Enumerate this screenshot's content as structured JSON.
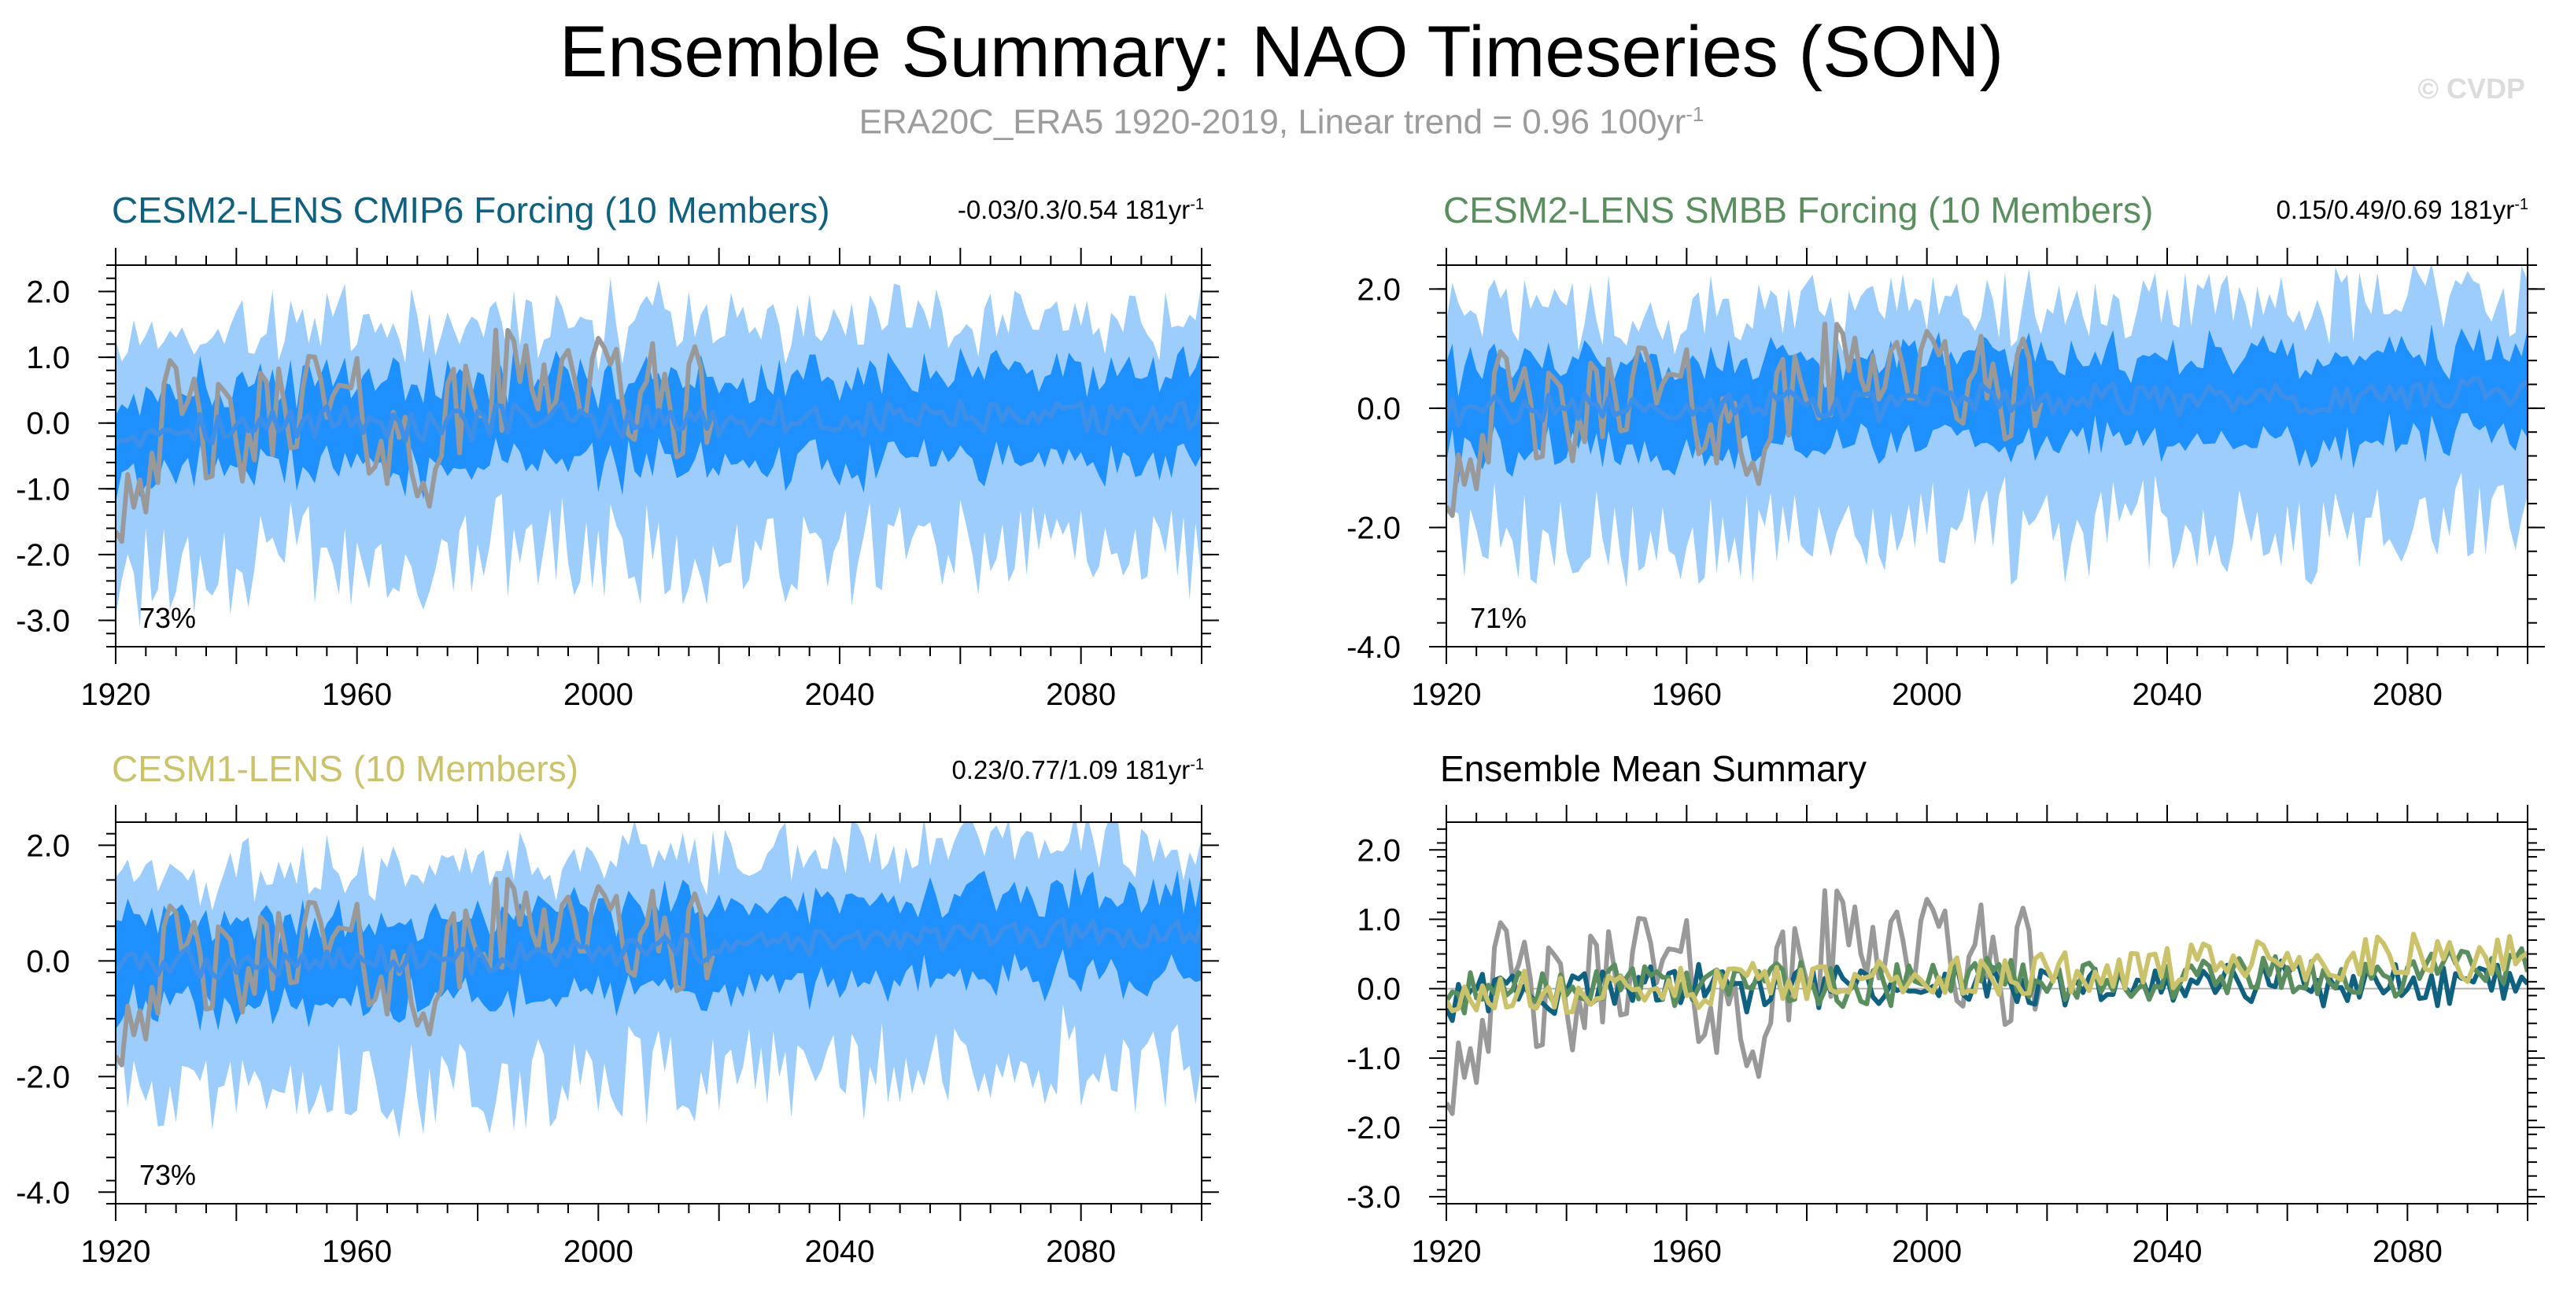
{
  "header": {
    "title": "Ensemble Summary: NAO Timeseries (SON)",
    "subtitle": "ERA20C_ERA5 1920-2019, Linear trend = 0.96 100yr",
    "subtitle_unit_exp": "-1",
    "credit": "© CVDP"
  },
  "colors": {
    "observed": "#999999",
    "ensemble_mean": "#3d8fe8",
    "inner_band": "#1e90ff",
    "outer_band": "#9dcdfc",
    "cesm2_cmip6": "#10607f",
    "cesm2_smbb": "#5b8e5f",
    "cesm1": "#cbc36b"
  },
  "panels": [
    {
      "title": "CESM2-LENS CMIP6 Forcing (10 Members)",
      "title_color": "#10607f",
      "stats": "-0.03/0.3/0.54 181yr",
      "stats_exp": "-1",
      "percent": "73%"
    },
    {
      "title": "CESM2-LENS SMBB Forcing (10 Members)",
      "title_color": "#5b8e5f",
      "stats": "0.15/0.49/0.69 181yr",
      "stats_exp": "-1",
      "percent": "71%"
    },
    {
      "title": "CESM1-LENS (10 Members)",
      "title_color": "#cbc36b",
      "stats": "0.23/0.77/1.09 181yr",
      "stats_exp": "-1",
      "percent": "73%"
    },
    {
      "title": "Ensemble Mean Summary",
      "title_color": "#000000",
      "stats": "",
      "stats_exp": "",
      "percent": ""
    }
  ],
  "chart_data": [
    {
      "type": "area",
      "title": "CESM2-LENS CMIP6 Forcing (10 Members)",
      "x_range": [
        1920,
        2100
      ],
      "xticks": [
        1920,
        1960,
        2000,
        2040,
        2080
      ],
      "ylim": [
        -3.4,
        2.4
      ],
      "yticks": [
        2.0,
        1.0,
        0.0,
        -1.0,
        -2.0,
        -3.0
      ],
      "ytick_labels": [
        "2.0",
        "1.0",
        "0.0",
        "-1.0",
        "-2.0",
        "-3.0"
      ],
      "series": [
        {
          "role": "observed",
          "x_range": [
            1920,
            2019
          ],
          "approx_values_by_decade": [
            -1.2,
            0.2,
            -0.4,
            0.5,
            0.1,
            -0.6,
            0.4,
            0.9,
            0.6,
            0.3
          ]
        },
        {
          "role": "ensemble_mean",
          "x_range": [
            1920,
            2100
          ],
          "approx_values_by_decade": [
            -0.2,
            0.0,
            -0.1,
            0.0,
            0.1,
            -0.1,
            0.0,
            0.1,
            0.0,
            0.1,
            0.0,
            0.1,
            0.0,
            0.1,
            0.1,
            0.0,
            0.1,
            0.0,
            0.2
          ]
        },
        {
          "role": "inner_band_range",
          "approx_values": [
            -0.9,
            0.9
          ]
        },
        {
          "role": "outer_band_range",
          "approx_values": [
            -2.4,
            1.8
          ]
        }
      ],
      "annotation": "73%"
    },
    {
      "type": "area",
      "title": "CESM2-LENS SMBB Forcing (10 Members)",
      "x_range": [
        1920,
        2100
      ],
      "xticks": [
        1920,
        1960,
        2000,
        2040,
        2080
      ],
      "ylim": [
        -4.0,
        2.4
      ],
      "yticks": [
        2.0,
        0.0,
        -2.0,
        -4.0
      ],
      "ytick_labels": [
        "2.0",
        "0.0",
        "-2.0",
        "-4.0"
      ],
      "series": [
        {
          "role": "observed",
          "x_range": [
            1920,
            2019
          ],
          "approx_values_by_decade": [
            -1.2,
            0.2,
            -0.4,
            0.5,
            0.1,
            -0.6,
            0.4,
            0.9,
            0.6,
            0.3
          ]
        },
        {
          "role": "ensemble_mean",
          "x_range": [
            1920,
            2100
          ],
          "approx_values_by_decade": [
            -0.1,
            0.0,
            0.0,
            0.1,
            0.0,
            0.1,
            0.1,
            0.0,
            0.1,
            0.2,
            0.1,
            0.2,
            0.1,
            0.2,
            0.2,
            0.1,
            0.2,
            0.3,
            0.3
          ]
        },
        {
          "role": "inner_band_range",
          "approx_values": [
            -1.0,
            1.0
          ]
        },
        {
          "role": "outer_band_range",
          "approx_values": [
            -2.6,
            1.9
          ]
        }
      ],
      "annotation": "71%"
    },
    {
      "type": "area",
      "title": "CESM1-LENS (10 Members)",
      "x_range": [
        1920,
        2100
      ],
      "xticks": [
        1920,
        1960,
        2000,
        2040,
        2080
      ],
      "ylim": [
        -4.2,
        2.4
      ],
      "yticks": [
        2.0,
        0.0,
        -2.0,
        -4.0
      ],
      "ytick_labels": [
        "2.0",
        "0.0",
        "-2.0",
        "-4.0"
      ],
      "series": [
        {
          "role": "observed",
          "x_range": [
            1920,
            2019
          ],
          "approx_values_by_decade": [
            -1.2,
            0.2,
            -0.4,
            0.5,
            0.1,
            -0.6,
            0.4,
            0.9,
            0.6,
            0.3
          ]
        },
        {
          "role": "ensemble_mean",
          "x_range": [
            1920,
            2100
          ],
          "approx_values_by_decade": [
            -0.1,
            0.0,
            -0.1,
            0.0,
            0.0,
            0.1,
            0.0,
            0.1,
            0.1,
            0.2,
            0.2,
            0.3,
            0.3,
            0.4,
            0.4,
            0.4,
            0.5,
            0.4,
            0.5
          ]
        },
        {
          "role": "inner_band_range",
          "approx_values": [
            -1.0,
            1.0
          ]
        },
        {
          "role": "outer_band_range",
          "approx_values": [
            -2.6,
            1.9
          ]
        }
      ],
      "annotation": "73%"
    },
    {
      "type": "line",
      "title": "Ensemble Mean Summary",
      "x_range": [
        1920,
        2100
      ],
      "xticks": [
        1920,
        1960,
        2000,
        2040,
        2080
      ],
      "ylim": [
        -3.1,
        2.4
      ],
      "yticks": [
        2.0,
        1.0,
        0.0,
        -1.0,
        -2.0,
        -3.0
      ],
      "ytick_labels": [
        "2.0",
        "1.0",
        "0.0",
        "-1.0",
        "-2.0",
        "-3.0"
      ],
      "series": [
        {
          "role": "observed",
          "x_range": [
            1920,
            2019
          ],
          "approx_values_by_decade": [
            -1.2,
            0.2,
            -0.4,
            0.5,
            0.1,
            -0.6,
            0.4,
            0.9,
            0.6,
            0.3
          ]
        },
        {
          "role": "cesm2_cmip6_mean",
          "x_range": [
            1920,
            2100
          ],
          "approx_values_by_decade": [
            -0.2,
            0.0,
            -0.1,
            0.0,
            0.1,
            -0.1,
            0.0,
            0.1,
            0.0,
            0.1,
            0.0,
            0.1,
            0.0,
            0.1,
            0.1,
            0.0,
            0.1,
            0.0,
            0.2
          ]
        },
        {
          "role": "cesm2_smbb_mean",
          "x_range": [
            1920,
            2100
          ],
          "approx_values_by_decade": [
            -0.1,
            0.0,
            0.0,
            0.1,
            0.0,
            0.1,
            0.1,
            0.0,
            0.1,
            0.2,
            0.1,
            0.2,
            0.1,
            0.2,
            0.2,
            0.1,
            0.2,
            0.3,
            0.3
          ]
        },
        {
          "role": "cesm1_mean",
          "x_range": [
            1920,
            2100
          ],
          "approx_values_by_decade": [
            -0.1,
            0.0,
            -0.1,
            0.0,
            0.0,
            0.1,
            0.0,
            0.1,
            0.1,
            0.2,
            0.2,
            0.3,
            0.3,
            0.4,
            0.4,
            0.4,
            0.5,
            0.4,
            0.5
          ]
        }
      ],
      "annotation": ""
    }
  ]
}
